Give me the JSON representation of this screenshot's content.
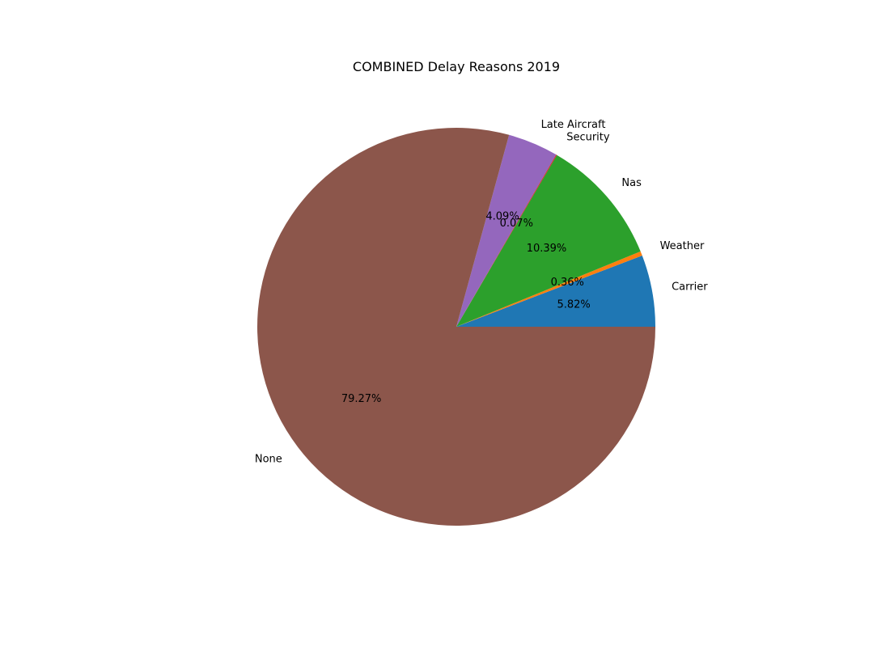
{
  "chart_data": {
    "type": "pie",
    "title": "COMBINED Delay Reasons 2019",
    "start_angle_deg": 0,
    "direction": "counterclockwise",
    "slices": [
      {
        "label": "Carrier",
        "value": 5.82,
        "pct_label": "5.82%",
        "color": "#1f77b4"
      },
      {
        "label": "Weather",
        "value": 0.36,
        "pct_label": "0.36%",
        "color": "#ff7f0e"
      },
      {
        "label": "Nas",
        "value": 10.39,
        "pct_label": "10.39%",
        "color": "#2ca02c"
      },
      {
        "label": "Security",
        "value": 0.07,
        "pct_label": "0.07%",
        "color": "#d62728"
      },
      {
        "label": "Late Aircraft",
        "value": 4.09,
        "pct_label": "4.09%",
        "color": "#9467bd"
      },
      {
        "label": "None",
        "value": 79.27,
        "pct_label": "79.27%",
        "color": "#8c564b"
      }
    ]
  }
}
